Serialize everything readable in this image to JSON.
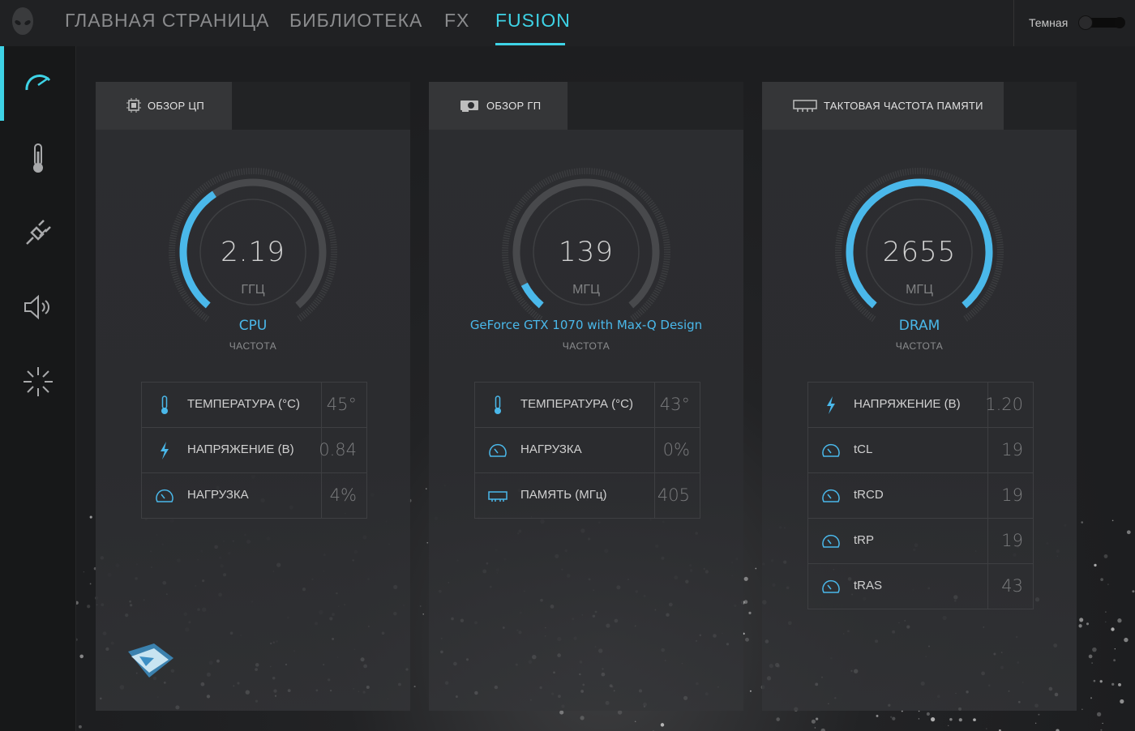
{
  "nav": {
    "tabs": [
      {
        "label": "ГЛАВНАЯ СТРАНИЦА"
      },
      {
        "label": "БИБЛИОТЕКА"
      },
      {
        "label": "FX"
      },
      {
        "label": "FUSION"
      }
    ],
    "active_tab": "FUSION",
    "theme_label": "Темная",
    "theme_toggle_on": false
  },
  "sidebar": {
    "items": [
      {
        "icon": "speedometer-icon",
        "active": true
      },
      {
        "icon": "thermometer-icon",
        "active": false
      },
      {
        "icon": "power-plug-icon",
        "active": false
      },
      {
        "icon": "speaker-icon",
        "active": false
      },
      {
        "icon": "light-burst-icon",
        "active": false
      }
    ]
  },
  "panels": [
    {
      "title": "ОБЗОР ЦП",
      "icon": "cpu-chip-icon",
      "gauge": {
        "value": "2.19",
        "unit": "ГГЦ",
        "fill_fraction": 0.38
      },
      "device": "CPU",
      "caption": "ЧАСТОТА",
      "stats": [
        {
          "icon": "thermometer-icon",
          "label": "ТЕМПЕРАТУРА (°C)",
          "value": "45°"
        },
        {
          "icon": "lightning-icon",
          "label": "НАПРЯЖЕНИЕ (В)",
          "value": "0.84"
        },
        {
          "icon": "gauge-icon",
          "label": "НАГРУЗКА",
          "value": "4%"
        }
      ]
    },
    {
      "title": "ОБЗОР ГП",
      "icon": "gpu-card-icon",
      "gauge": {
        "value": "139",
        "unit": "МГЦ",
        "fill_fraction": 0.08
      },
      "device": "GeForce GTX 1070 with Max-Q Design",
      "caption": "ЧАСТОТА",
      "stats": [
        {
          "icon": "thermometer-icon",
          "label": "ТЕМПЕРАТУРА (°C)",
          "value": "43°"
        },
        {
          "icon": "gauge-icon",
          "label": "НАГРУЗКА",
          "value": "0%"
        },
        {
          "icon": "memory-module-icon",
          "label": "ПАМЯТЬ (МГц)",
          "value": "405"
        }
      ]
    },
    {
      "title": "ТАКТОВАЯ ЧАСТОТА ПАМЯТИ",
      "icon": "memory-module-icon",
      "gauge": {
        "value": "2655",
        "unit": "МГЦ",
        "fill_fraction": 1.0
      },
      "device": "DRAM",
      "caption": "ЧАСТОТА",
      "stats": [
        {
          "icon": "lightning-icon",
          "label": "НАПРЯЖЕНИЕ (В)",
          "value": "1.20"
        },
        {
          "icon": "gauge-icon",
          "label": "tCL",
          "value": "19"
        },
        {
          "icon": "gauge-icon",
          "label": "tRCD",
          "value": "19"
        },
        {
          "icon": "gauge-icon",
          "label": "tRP",
          "value": "19"
        },
        {
          "icon": "gauge-icon",
          "label": "tRAS",
          "value": "43"
        }
      ]
    }
  ],
  "colors": {
    "accent": "#3ed3e6",
    "gauge_blue": "#4ab8ea",
    "panel_bg": "#2c2d30",
    "background": "#1b1c1e"
  }
}
